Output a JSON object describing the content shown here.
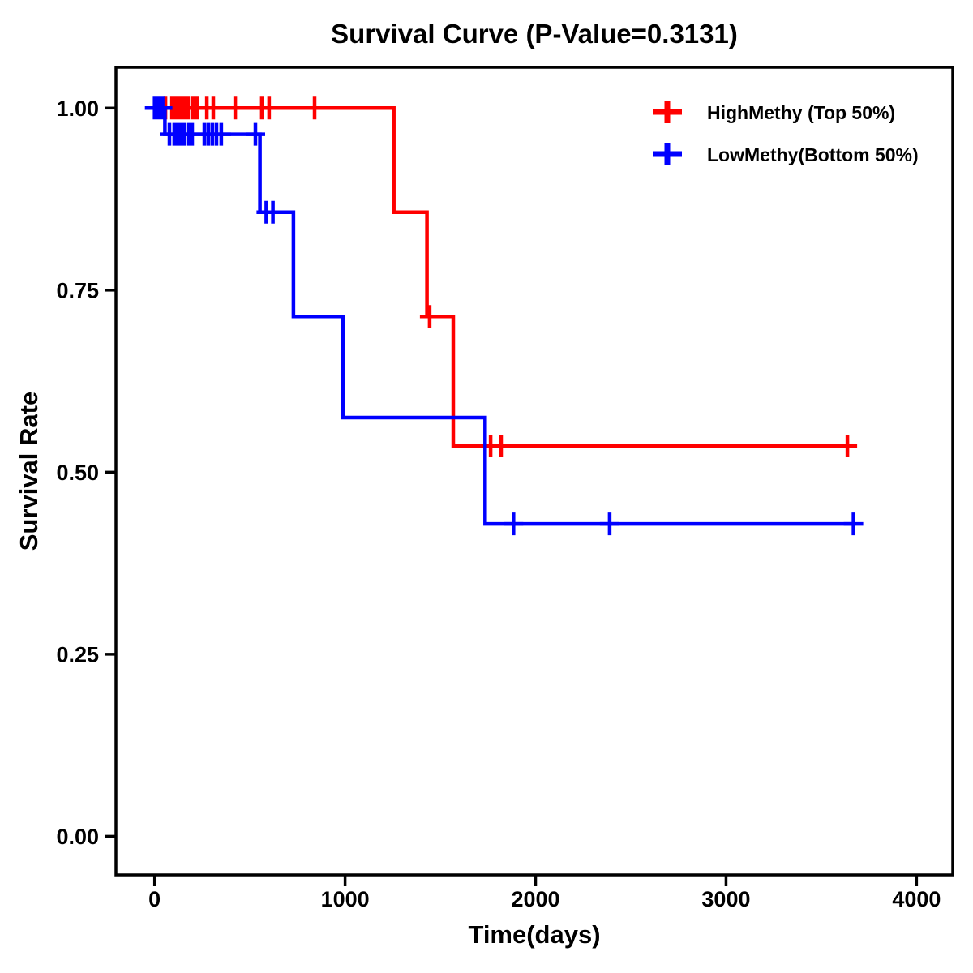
{
  "title": "Survival Curve (P-Value=0.3131)",
  "p_value": "0.3131",
  "colors": {
    "high_methy": "#FF0000",
    "low_methy": "#0000FF",
    "axis": "#000000",
    "background": "#FFFFFF"
  },
  "chart_data": {
    "type": "line",
    "subtype": "kaplan-meier-step",
    "title": "Survival Curve (P-Value=0.3131)",
    "xlabel": "Time(days)",
    "ylabel": "Survival Rate",
    "x_ticks": {
      "values": [
        0,
        1000,
        2000,
        3000,
        4000
      ],
      "labels": [
        "0",
        "1000",
        "2000",
        "3000",
        "4000"
      ]
    },
    "y_ticks": {
      "values": [
        1.0,
        0.75,
        0.5,
        0.25,
        0.0
      ],
      "labels": [
        "1.00",
        "0.75",
        "0.50",
        "0.25",
        "0.00"
      ]
    },
    "xlim": [
      -203,
      4190
    ],
    "ylim": [
      -0.053,
      1.056
    ],
    "grid": "off",
    "legend_position": "top-right-inside",
    "series": [
      {
        "id": "high-methy",
        "name": "HighMethy (Top 50%)",
        "color": "#FF0000",
        "steps": [
          [
            0,
            1.0
          ],
          [
            1256,
            0.857
          ],
          [
            1430,
            0.714
          ],
          [
            1568,
            0.536
          ]
        ],
        "end_time": 3637,
        "censors": [
          [
            57,
            1.0
          ],
          [
            91,
            1.0
          ],
          [
            112,
            1.0
          ],
          [
            133,
            1.0
          ],
          [
            155,
            1.0
          ],
          [
            176,
            1.0
          ],
          [
            201,
            1.0
          ],
          [
            223,
            1.0
          ],
          [
            274,
            1.0
          ],
          [
            308,
            1.0
          ],
          [
            423,
            1.0
          ],
          [
            563,
            1.0
          ],
          [
            601,
            1.0
          ],
          [
            840,
            1.0
          ],
          [
            1444,
            0.714
          ],
          [
            1764,
            0.536
          ],
          [
            1819,
            0.536
          ],
          [
            3637,
            0.536
          ]
        ]
      },
      {
        "id": "low-methy",
        "name": "LowMethy(Bottom 50%)",
        "color": "#0000FF",
        "steps": [
          [
            0,
            1.0
          ],
          [
            54,
            0.964
          ],
          [
            553,
            0.857
          ],
          [
            729,
            0.714
          ],
          [
            989,
            0.575
          ],
          [
            1735,
            0.429
          ]
        ],
        "end_time": 3669,
        "censors": [
          [
            0,
            1.0
          ],
          [
            14,
            1.0
          ],
          [
            28,
            1.0
          ],
          [
            42,
            1.0
          ],
          [
            78,
            0.964
          ],
          [
            103,
            0.964
          ],
          [
            120,
            0.964
          ],
          [
            137,
            0.964
          ],
          [
            155,
            0.964
          ],
          [
            180,
            0.964
          ],
          [
            197,
            0.964
          ],
          [
            261,
            0.964
          ],
          [
            282,
            0.964
          ],
          [
            303,
            0.964
          ],
          [
            325,
            0.964
          ],
          [
            350,
            0.964
          ],
          [
            529,
            0.964
          ],
          [
            586,
            0.857
          ],
          [
            621,
            0.857
          ],
          [
            1884,
            0.429
          ],
          [
            2389,
            0.429
          ],
          [
            3669,
            0.429
          ]
        ]
      }
    ]
  }
}
